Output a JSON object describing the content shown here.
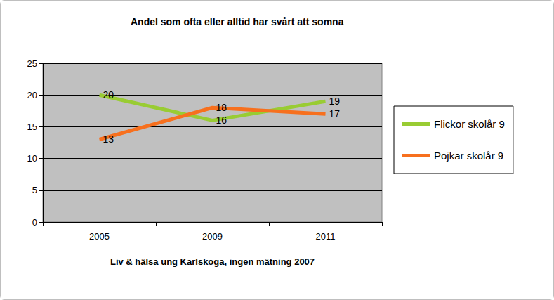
{
  "chart_data": {
    "type": "line",
    "title": "Andel som ofta eller alltid har svårt att somna",
    "xlabel": "Liv & hälsa ung Karlskoga, ingen mätning 2007",
    "categories": [
      "2005",
      "2009",
      "2011"
    ],
    "series": [
      {
        "name": "Flickor skolår 9",
        "color": "#99cc33",
        "values": [
          20,
          16,
          19
        ]
      },
      {
        "name": "Pojkar skolår 9",
        "color": "#f7701e",
        "values": [
          13,
          18,
          17
        ]
      }
    ],
    "ylim": [
      0,
      25
    ],
    "yticks": [
      0,
      5,
      10,
      15,
      20,
      25
    ],
    "grid": true,
    "data_labels": true,
    "legend": "right"
  }
}
